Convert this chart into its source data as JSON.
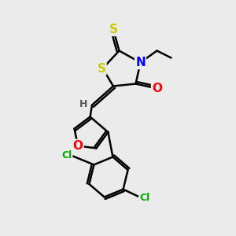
{
  "bg_color": "#ebebeb",
  "atom_colors": {
    "S": "#cccc00",
    "N": "#0000ff",
    "O": "#ff0000",
    "Cl": "#00aa00",
    "C": "#000000",
    "H": "#555555"
  },
  "bond_color": "#000000",
  "bond_width": 1.8,
  "fig_width": 3.0,
  "fig_height": 3.0,
  "dpi": 100
}
